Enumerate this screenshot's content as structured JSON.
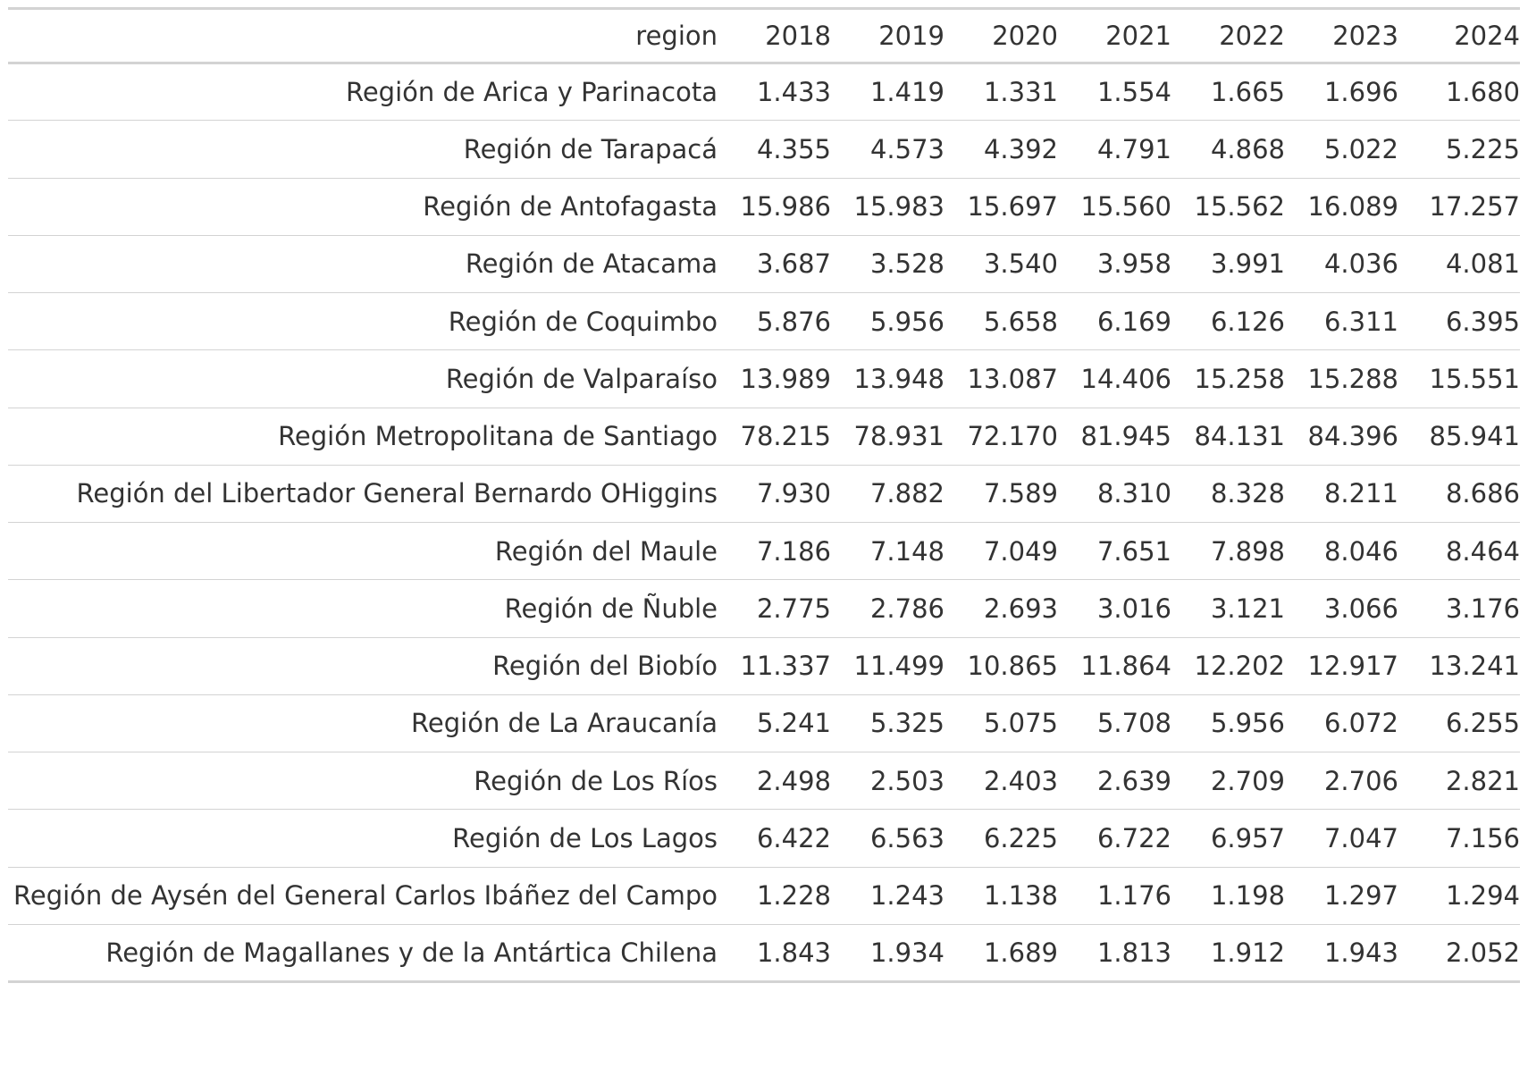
{
  "table": {
    "columns": [
      "region",
      "2018",
      "2019",
      "2020",
      "2021",
      "2022",
      "2023",
      "2024"
    ],
    "rows": [
      [
        "Región de Arica y Parinacota",
        "1.433",
        "1.419",
        "1.331",
        "1.554",
        "1.665",
        "1.696",
        "1.680"
      ],
      [
        "Región de Tarapacá",
        "4.355",
        "4.573",
        "4.392",
        "4.791",
        "4.868",
        "5.022",
        "5.225"
      ],
      [
        "Región de Antofagasta",
        "15.986",
        "15.983",
        "15.697",
        "15.560",
        "15.562",
        "16.089",
        "17.257"
      ],
      [
        "Región de Atacama",
        "3.687",
        "3.528",
        "3.540",
        "3.958",
        "3.991",
        "4.036",
        "4.081"
      ],
      [
        "Región de Coquimbo",
        "5.876",
        "5.956",
        "5.658",
        "6.169",
        "6.126",
        "6.311",
        "6.395"
      ],
      [
        "Región de Valparaíso",
        "13.989",
        "13.948",
        "13.087",
        "14.406",
        "15.258",
        "15.288",
        "15.551"
      ],
      [
        "Región Metropolitana de Santiago",
        "78.215",
        "78.931",
        "72.170",
        "81.945",
        "84.131",
        "84.396",
        "85.941"
      ],
      [
        "Región del Libertador General Bernardo OHiggins",
        "7.930",
        "7.882",
        "7.589",
        "8.310",
        "8.328",
        "8.211",
        "8.686"
      ],
      [
        "Región del Maule",
        "7.186",
        "7.148",
        "7.049",
        "7.651",
        "7.898",
        "8.046",
        "8.464"
      ],
      [
        "Región de Ñuble",
        "2.775",
        "2.786",
        "2.693",
        "3.016",
        "3.121",
        "3.066",
        "3.176"
      ],
      [
        "Región del Biobío",
        "11.337",
        "11.499",
        "10.865",
        "11.864",
        "12.202",
        "12.917",
        "13.241"
      ],
      [
        "Región de La Araucanía",
        "5.241",
        "5.325",
        "5.075",
        "5.708",
        "5.956",
        "6.072",
        "6.255"
      ],
      [
        "Región de Los Ríos",
        "2.498",
        "2.503",
        "2.403",
        "2.639",
        "2.709",
        "2.706",
        "2.821"
      ],
      [
        "Región de Los Lagos",
        "6.422",
        "6.563",
        "6.225",
        "6.722",
        "6.957",
        "7.047",
        "7.156"
      ],
      [
        "Región de Aysén del General Carlos Ibáñez del Campo",
        "1.228",
        "1.243",
        "1.138",
        "1.176",
        "1.198",
        "1.297",
        "1.294"
      ],
      [
        "Región de Magallanes y de la Antártica Chilena",
        "1.843",
        "1.934",
        "1.689",
        "1.813",
        "1.912",
        "1.943",
        "2.052"
      ]
    ]
  },
  "colors": {
    "text": "#333333",
    "rule": "#d3d3d3",
    "background": "#ffffff"
  }
}
